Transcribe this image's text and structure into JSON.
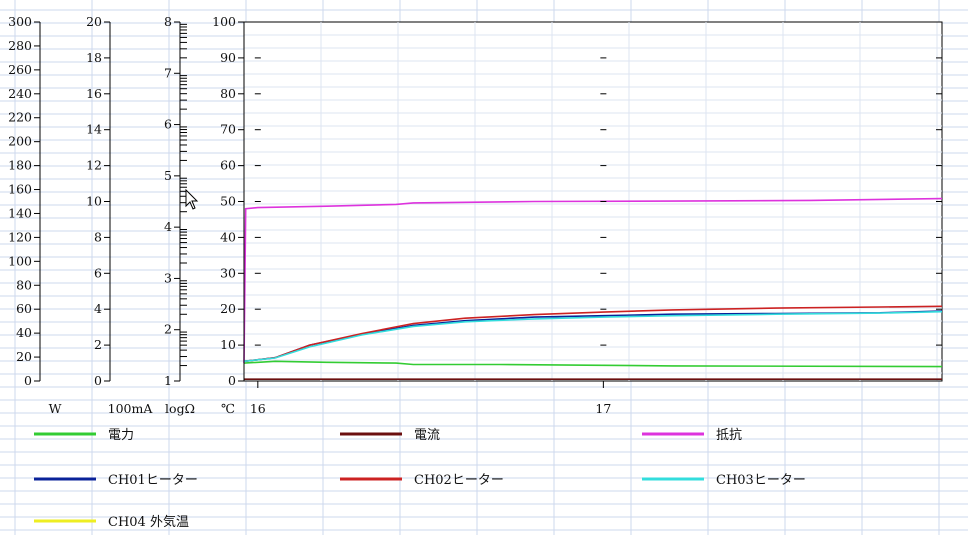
{
  "chart_data": {
    "type": "line",
    "background_grid": true,
    "plot_grid": true,
    "axes": [
      {
        "id": "W",
        "unit_label": "W",
        "range": [
          0,
          300
        ],
        "ticks": [
          0,
          20,
          40,
          60,
          80,
          100,
          120,
          140,
          160,
          180,
          200,
          220,
          240,
          260,
          280,
          300
        ]
      },
      {
        "id": "mA",
        "unit_label": "100mA",
        "range": [
          0,
          20
        ],
        "ticks": [
          0,
          2,
          4,
          6,
          8,
          10,
          12,
          14,
          16,
          18,
          20
        ]
      },
      {
        "id": "log",
        "unit_label": "logΩ",
        "range": [
          1,
          8
        ],
        "ticks": [
          1,
          2,
          3,
          4,
          5,
          6,
          7,
          8
        ]
      },
      {
        "id": "C",
        "unit_label": "℃",
        "range": [
          0,
          100
        ],
        "ticks": [
          0,
          10,
          20,
          30,
          40,
          50,
          60,
          70,
          80,
          90,
          100
        ]
      }
    ],
    "x": {
      "range": [
        15.96,
        17.98
      ],
      "ticks": [
        16,
        17
      ],
      "tick_labels": [
        "16",
        "17"
      ]
    },
    "legend_placement": "bottom",
    "series": [
      {
        "name": "電力",
        "color": "#33cc33",
        "axis": "C",
        "points": [
          [
            15.96,
            5
          ],
          [
            16.05,
            5.5
          ],
          [
            16.2,
            5.2
          ],
          [
            16.4,
            5
          ],
          [
            16.45,
            4.6
          ],
          [
            16.7,
            4.6
          ],
          [
            16.95,
            4.4
          ],
          [
            17.2,
            4.2
          ],
          [
            17.98,
            4
          ]
        ]
      },
      {
        "name": "電流",
        "color": "#6b0f0f",
        "axis": "C",
        "points": [
          [
            15.96,
            0.5
          ],
          [
            17.98,
            0.5
          ]
        ]
      },
      {
        "name": "抵抗",
        "color": "#dd33dd",
        "axis": "C",
        "points": [
          [
            15.96,
            5
          ],
          [
            15.965,
            48
          ],
          [
            16.0,
            48.3
          ],
          [
            16.2,
            48.7
          ],
          [
            16.4,
            49.2
          ],
          [
            16.45,
            49.6
          ],
          [
            16.8,
            50
          ],
          [
            17.2,
            50.1
          ],
          [
            17.6,
            50.3
          ],
          [
            17.98,
            50.8
          ]
        ]
      },
      {
        "name": "CH01ヒーター",
        "color": "#0a2299",
        "axis": "C",
        "points": [
          [
            15.96,
            5.5
          ],
          [
            16.05,
            6.5
          ],
          [
            16.15,
            10
          ],
          [
            16.3,
            13
          ],
          [
            16.45,
            15.5
          ],
          [
            16.6,
            16.8
          ],
          [
            16.8,
            17.8
          ],
          [
            17.0,
            18.2
          ],
          [
            17.2,
            18.6
          ],
          [
            17.5,
            18.8
          ],
          [
            17.8,
            19
          ],
          [
            17.98,
            19.5
          ]
        ]
      },
      {
        "name": "CH02ヒーター",
        "color": "#cc2222",
        "axis": "C",
        "points": [
          [
            15.96,
            5.5
          ],
          [
            16.05,
            6.5
          ],
          [
            16.15,
            10
          ],
          [
            16.3,
            13.2
          ],
          [
            16.45,
            16
          ],
          [
            16.6,
            17.5
          ],
          [
            16.8,
            18.5
          ],
          [
            17.0,
            19.2
          ],
          [
            17.2,
            19.8
          ],
          [
            17.5,
            20.3
          ],
          [
            17.8,
            20.6
          ],
          [
            17.98,
            20.8
          ]
        ]
      },
      {
        "name": "CH03ヒーター",
        "color": "#33dddd",
        "axis": "C",
        "points": [
          [
            15.96,
            5.5
          ],
          [
            16.05,
            6.4
          ],
          [
            16.15,
            9.5
          ],
          [
            16.3,
            12.8
          ],
          [
            16.45,
            15.2
          ],
          [
            16.6,
            16.5
          ],
          [
            16.8,
            17.3
          ],
          [
            17.0,
            17.8
          ],
          [
            17.2,
            18.2
          ],
          [
            17.5,
            18.6
          ],
          [
            17.8,
            18.9
          ],
          [
            17.98,
            19.3
          ]
        ]
      },
      {
        "name": "CH04 外気温",
        "color": "#eeee22",
        "axis": "C",
        "points": []
      }
    ]
  }
}
